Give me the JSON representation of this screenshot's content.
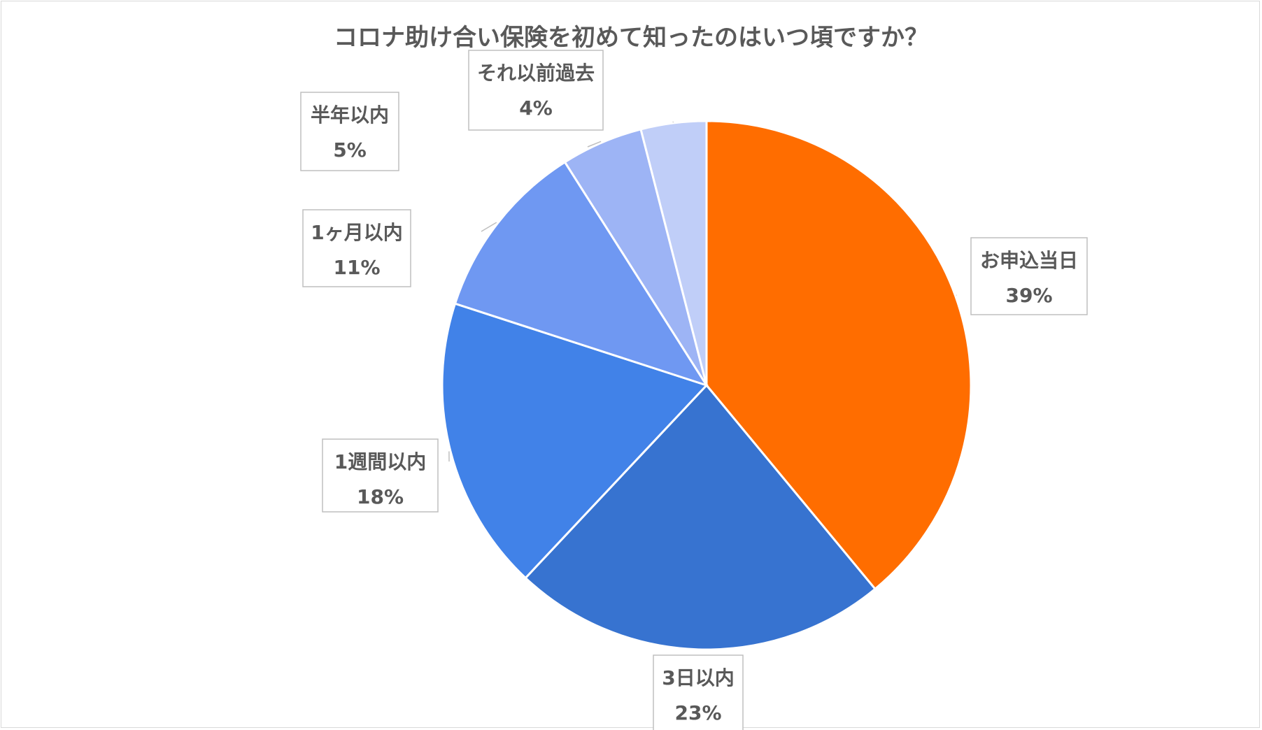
{
  "chart_data": {
    "type": "pie",
    "title": "コロナ助け合い保険を初めて知ったのはいつ頃ですか？",
    "categories": [
      "お申込当日",
      "3日以内",
      "1週間以内",
      "1ヶ月以内",
      "半年以内",
      "それ以前過去"
    ],
    "values": [
      39,
      23,
      18,
      11,
      5,
      4
    ],
    "value_labels": [
      "39%",
      "23%",
      "18%",
      "11%",
      "5%",
      "4%"
    ],
    "unit": "%",
    "colors": [
      "#ff6d00",
      "#3773d0",
      "#4182e8",
      "#6f98f2",
      "#9db4f5",
      "#c0cef8"
    ],
    "start_angle": "12 o'clock",
    "direction": "clockwise",
    "legend": "none",
    "data_labels": "callouts with leader lines"
  }
}
